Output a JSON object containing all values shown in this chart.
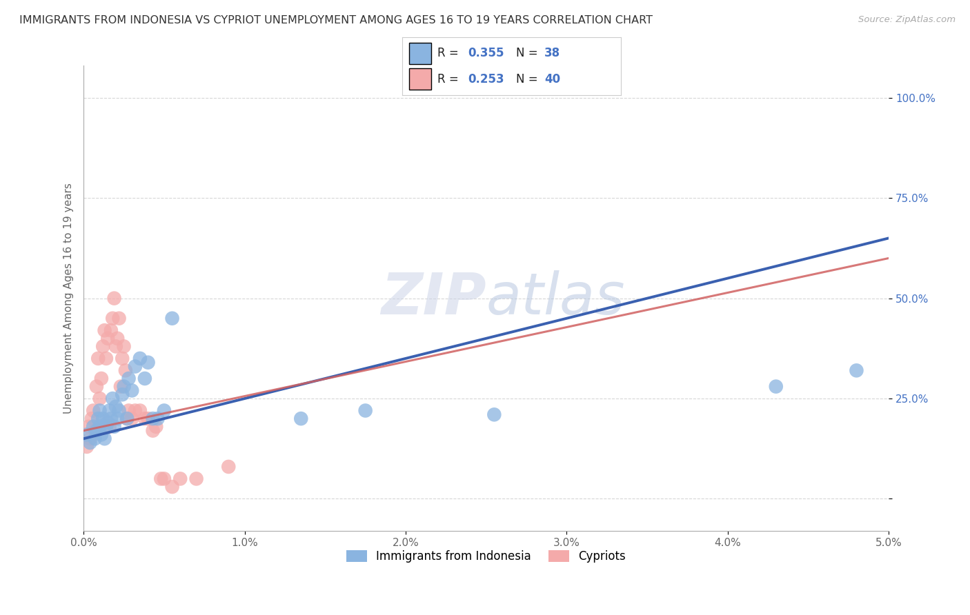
{
  "title": "IMMIGRANTS FROM INDONESIA VS CYPRIOT UNEMPLOYMENT AMONG AGES 16 TO 19 YEARS CORRELATION CHART",
  "source": "Source: ZipAtlas.com",
  "ylabel": "Unemployment Among Ages 16 to 19 years",
  "xlim": [
    0.0,
    5.0
  ],
  "ylim": [
    -8.0,
    108.0
  ],
  "yticks": [
    0.0,
    25.0,
    50.0,
    75.0,
    100.0
  ],
  "xticks": [
    0.0,
    1.0,
    2.0,
    3.0,
    4.0,
    5.0
  ],
  "xtick_labels": [
    "0.0%",
    "1.0%",
    "2.0%",
    "3.0%",
    "4.0%",
    "5.0%"
  ],
  "ytick_labels": [
    "",
    "25.0%",
    "50.0%",
    "75.0%",
    "100.0%"
  ],
  "legend1_R": "0.355",
  "legend1_N": "38",
  "legend2_R": "0.253",
  "legend2_N": "40",
  "blue_color": "#8ab4e0",
  "pink_color": "#f4aaaa",
  "blue_line_color": "#3a60b0",
  "pink_line_color": "#d06060",
  "label_color": "#4472c4",
  "watermark_color": "#cdd5e8",
  "blue_scatter_x": [
    0.02,
    0.04,
    0.06,
    0.07,
    0.08,
    0.09,
    0.1,
    0.1,
    0.11,
    0.12,
    0.13,
    0.14,
    0.15,
    0.16,
    0.17,
    0.18,
    0.19,
    0.2,
    0.21,
    0.22,
    0.24,
    0.25,
    0.27,
    0.28,
    0.3,
    0.32,
    0.35,
    0.38,
    0.4,
    0.43,
    0.46,
    0.5,
    0.55,
    1.35,
    1.75,
    2.55,
    4.3,
    4.8
  ],
  "blue_scatter_y": [
    16,
    14,
    18,
    15,
    17,
    20,
    18,
    22,
    16,
    20,
    15,
    18,
    19,
    22,
    20,
    25,
    18,
    23,
    20,
    22,
    26,
    28,
    20,
    30,
    27,
    33,
    35,
    30,
    34,
    20,
    20,
    22,
    45,
    20,
    22,
    21,
    28,
    32
  ],
  "pink_scatter_x": [
    0.02,
    0.03,
    0.04,
    0.05,
    0.06,
    0.07,
    0.08,
    0.09,
    0.1,
    0.11,
    0.12,
    0.13,
    0.14,
    0.15,
    0.16,
    0.17,
    0.18,
    0.19,
    0.2,
    0.21,
    0.22,
    0.23,
    0.24,
    0.25,
    0.26,
    0.27,
    0.28,
    0.3,
    0.32,
    0.35,
    0.38,
    0.4,
    0.43,
    0.45,
    0.48,
    0.5,
    0.55,
    0.6,
    0.7,
    0.9
  ],
  "pink_scatter_y": [
    13,
    18,
    15,
    20,
    22,
    17,
    28,
    35,
    25,
    30,
    38,
    42,
    35,
    40,
    18,
    42,
    45,
    50,
    38,
    40,
    45,
    28,
    35,
    38,
    32,
    20,
    22,
    20,
    22,
    22,
    20,
    20,
    17,
    18,
    5,
    5,
    3,
    5,
    5,
    8
  ],
  "blue_trendline_x0": 0.0,
  "blue_trendline_y0": 15.0,
  "blue_trendline_x1": 5.0,
  "blue_trendline_y1": 65.0,
  "pink_trendline_x0": 0.0,
  "pink_trendline_y0": 17.0,
  "pink_trendline_x1": 5.0,
  "pink_trendline_y1": 60.0
}
